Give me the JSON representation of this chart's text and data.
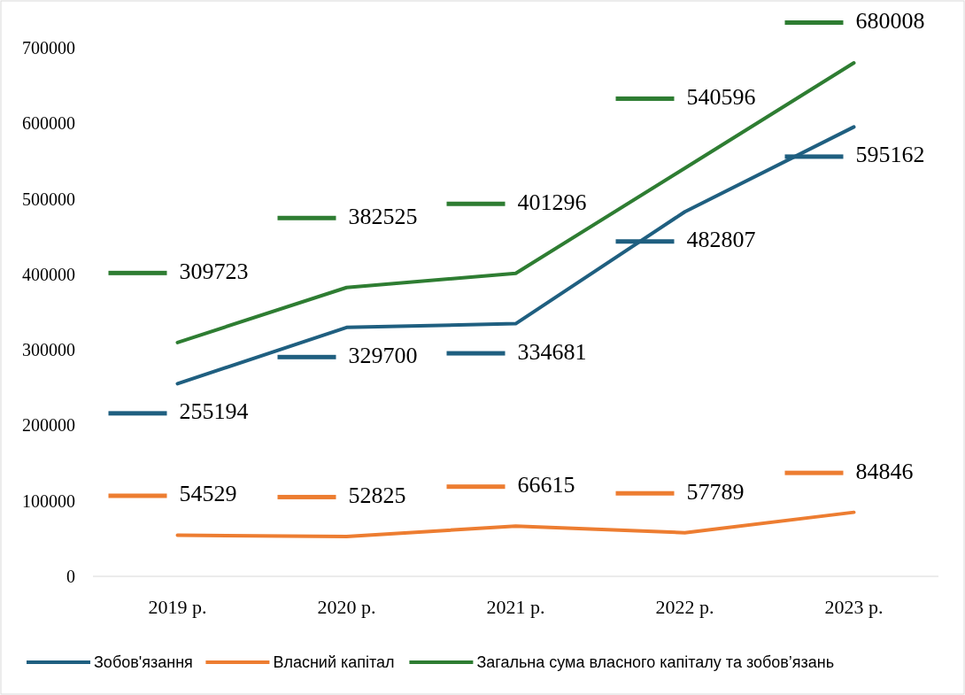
{
  "chart_data": {
    "type": "line",
    "categories": [
      "2019 р.",
      "2020 р.",
      "2021 р.",
      "2022 р.",
      "2023 р."
    ],
    "series": [
      {
        "name": "Зобов'язання",
        "color": "#1f5f80",
        "values": [
          255194,
          329700,
          334681,
          482807,
          595162
        ]
      },
      {
        "name": "Власний капітал",
        "color": "#ed7d31",
        "values": [
          54529,
          52825,
          66615,
          57789,
          84846
        ]
      },
      {
        "name": "Загальна сума власного капіталу та зобов’язань",
        "color": "#2e7d32",
        "values": [
          309723,
          382525,
          401296,
          540596,
          680008
        ]
      }
    ],
    "ylim": [
      0,
      700000
    ],
    "yticks": [
      0,
      100000,
      200000,
      300000,
      400000,
      500000,
      600000,
      700000
    ],
    "grid": false,
    "legend": "bottom",
    "data_labels": true,
    "marker": "none",
    "line_style": "solid"
  }
}
